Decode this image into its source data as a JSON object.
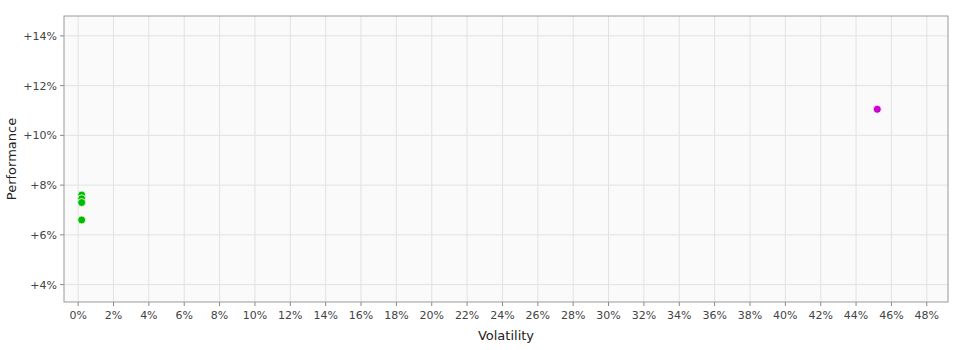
{
  "chart_data": {
    "type": "scatter",
    "x_label": "Volatility",
    "y_label": "Performance",
    "series": [
      {
        "color": "#00bb00",
        "marker": "circle",
        "x": [
          0.002,
          0.002,
          0.002,
          0.002
        ],
        "values": [
          0.076,
          0.0745,
          0.073,
          0.066
        ]
      },
      {
        "color": "#cc00cc",
        "marker": "circle",
        "x": [
          0.452
        ],
        "values": [
          0.1105
        ]
      }
    ],
    "xlim": [
      -0.008,
      0.492
    ],
    "ylim": [
      0.033,
      0.148
    ],
    "xticks": [
      {
        "value": 0,
        "label": "0%"
      },
      {
        "value": 0.02,
        "label": "2%"
      },
      {
        "value": 0.04,
        "label": "4%"
      },
      {
        "value": 0.06,
        "label": "6%"
      },
      {
        "value": 0.08,
        "label": "8%"
      },
      {
        "value": 0.1,
        "label": "10%"
      },
      {
        "value": 0.12,
        "label": "12%"
      },
      {
        "value": 0.14,
        "label": "14%"
      },
      {
        "value": 0.16,
        "label": "16%"
      },
      {
        "value": 0.18,
        "label": "18%"
      },
      {
        "value": 0.2,
        "label": "20%"
      },
      {
        "value": 0.22,
        "label": "22%"
      },
      {
        "value": 0.24,
        "label": "24%"
      },
      {
        "value": 0.26,
        "label": "26%"
      },
      {
        "value": 0.28,
        "label": "28%"
      },
      {
        "value": 0.3,
        "label": "30%"
      },
      {
        "value": 0.32,
        "label": "32%"
      },
      {
        "value": 0.34,
        "label": "34%"
      },
      {
        "value": 0.36,
        "label": "36%"
      },
      {
        "value": 0.38,
        "label": "38%"
      },
      {
        "value": 0.4,
        "label": "40%"
      },
      {
        "value": 0.42,
        "label": "42%"
      },
      {
        "value": 0.44,
        "label": "44%"
      },
      {
        "value": 0.46,
        "label": "46%"
      },
      {
        "value": 0.48,
        "label": "48%"
      }
    ],
    "yticks": [
      {
        "value": 0.04,
        "label": "+4%"
      },
      {
        "value": 0.06,
        "label": "+6%"
      },
      {
        "value": 0.08,
        "label": "+8%"
      },
      {
        "value": 0.1,
        "label": "+10%"
      },
      {
        "value": 0.12,
        "label": "+12%"
      },
      {
        "value": 0.14,
        "label": "+14%"
      }
    ],
    "grid": true
  }
}
